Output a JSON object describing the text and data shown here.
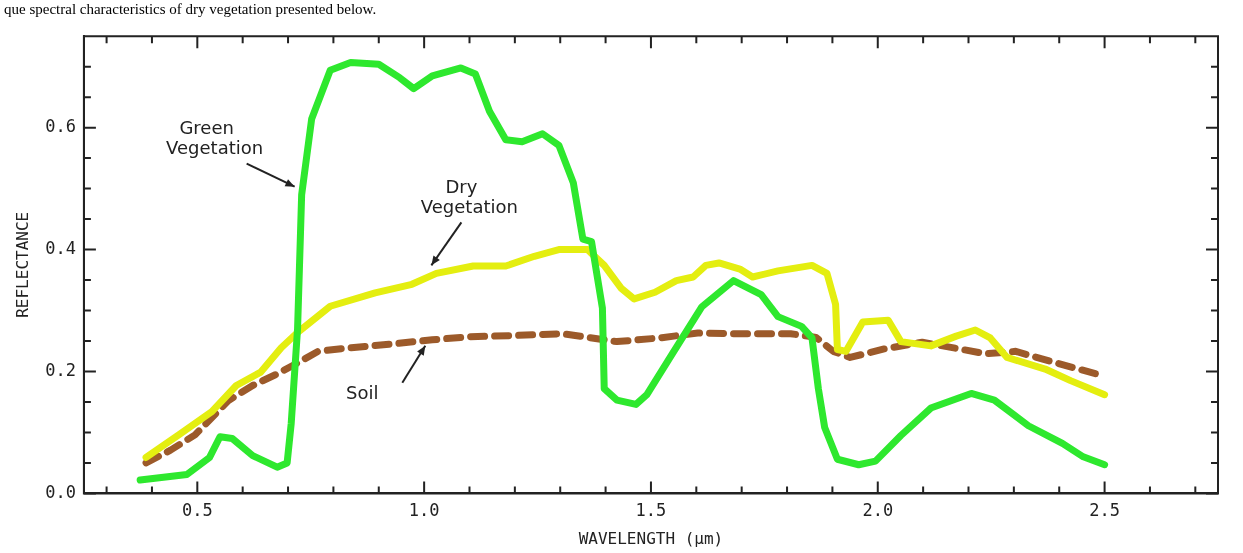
{
  "chart_data": {
    "type": "line",
    "annotations": [
      "que spectral characteristics of dry vegetation presented below."
    ],
    "xlabel": "WAVELENGTH (μm)",
    "ylabel": "REFLECTANCE",
    "xlim": [
      0.25,
      2.75
    ],
    "xticks": [
      {
        "value": 0.3,
        "label": null
      },
      {
        "value": 0.4,
        "label": null
      },
      {
        "value": 0.5,
        "label": "0.5"
      },
      {
        "value": 0.6,
        "label": null
      },
      {
        "value": 0.7,
        "label": null
      },
      {
        "value": 0.8,
        "label": null
      },
      {
        "value": 0.9,
        "label": null
      },
      {
        "value": 1,
        "label": "1.0"
      },
      {
        "value": 1.1,
        "label": null
      },
      {
        "value": 1.2,
        "label": null
      },
      {
        "value": 1.3,
        "label": null
      },
      {
        "value": 1.4,
        "label": null
      },
      {
        "value": 1.5,
        "label": "1.5"
      },
      {
        "value": 1.6,
        "label": null
      },
      {
        "value": 1.7,
        "label": null
      },
      {
        "value": 1.8,
        "label": null
      },
      {
        "value": 1.9,
        "label": null
      },
      {
        "value": 2,
        "label": "2.0"
      },
      {
        "value": 2.1,
        "label": null
      },
      {
        "value": 2.2,
        "label": null
      },
      {
        "value": 2.3,
        "label": null
      },
      {
        "value": 2.4,
        "label": null
      },
      {
        "value": 2.5,
        "label": "2.5"
      },
      {
        "value": 2.6,
        "label": null
      },
      {
        "value": 2.7,
        "label": null
      }
    ],
    "ylim": [
      0,
      0.75
    ],
    "yticks": [
      {
        "value": 0,
        "label": "0.0"
      },
      {
        "value": 0.05,
        "label": null
      },
      {
        "value": 0.1,
        "label": null
      },
      {
        "value": 0.15,
        "label": null
      },
      {
        "value": 0.2,
        "label": "0.2"
      },
      {
        "value": 0.25,
        "label": null
      },
      {
        "value": 0.3,
        "label": null
      },
      {
        "value": 0.35,
        "label": null
      },
      {
        "value": 0.4,
        "label": "0.4"
      },
      {
        "value": 0.45,
        "label": null
      },
      {
        "value": 0.5,
        "label": null
      },
      {
        "value": 0.55,
        "label": null
      },
      {
        "value": 0.6,
        "label": "0.6"
      },
      {
        "value": 0.65,
        "label": null
      },
      {
        "value": 0.7,
        "label": null
      }
    ],
    "grid": false,
    "legend": false,
    "marker": "none",
    "series": [
      {
        "name": "Green Vegetation",
        "color": "#2ee82e",
        "line_style": "solid",
        "x": [
          0.374,
          0.477,
          0.527,
          0.55,
          0.577,
          0.622,
          0.676,
          0.698,
          0.707,
          0.721,
          0.725,
          0.73,
          0.752,
          0.793,
          0.838,
          0.9,
          0.946,
          0.977,
          1.018,
          1.081,
          1.113,
          1.144,
          1.18,
          1.216,
          1.261,
          1.297,
          1.329,
          1.35,
          1.369,
          1.393,
          1.397,
          1.425,
          1.467,
          1.491,
          1.547,
          1.612,
          1.682,
          1.743,
          1.78,
          1.832,
          1.855,
          1.869,
          1.883,
          1.911,
          1.958,
          1.995,
          2.051,
          2.117,
          2.206,
          2.257,
          2.332,
          2.407,
          2.453,
          2.5
        ],
        "values": [
          0.022,
          0.031,
          0.059,
          0.093,
          0.09,
          0.062,
          0.043,
          0.05,
          0.115,
          0.27,
          0.367,
          0.49,
          0.614,
          0.694,
          0.707,
          0.704,
          0.682,
          0.664,
          0.685,
          0.698,
          0.688,
          0.627,
          0.58,
          0.577,
          0.59,
          0.571,
          0.509,
          0.417,
          0.413,
          0.304,
          0.172,
          0.153,
          0.146,
          0.162,
          0.229,
          0.306,
          0.349,
          0.326,
          0.29,
          0.274,
          0.255,
          0.172,
          0.108,
          0.056,
          0.047,
          0.053,
          0.095,
          0.14,
          0.164,
          0.153,
          0.111,
          0.082,
          0.06,
          0.047
        ]
      },
      {
        "name": "Dry Vegetation",
        "color": "#e4ee10",
        "line_style": "solid",
        "x": [
          0.387,
          0.459,
          0.532,
          0.586,
          0.64,
          0.685,
          0.721,
          0.793,
          0.892,
          0.973,
          1.027,
          1.108,
          1.18,
          1.243,
          1.297,
          1.36,
          1.397,
          1.435,
          1.463,
          1.509,
          1.556,
          1.593,
          1.621,
          1.65,
          1.696,
          1.724,
          1.78,
          1.855,
          1.888,
          1.907,
          1.911,
          1.93,
          1.967,
          2.023,
          2.051,
          2.117,
          2.173,
          2.215,
          2.248,
          2.285,
          2.369,
          2.425,
          2.5
        ],
        "values": [
          0.059,
          0.096,
          0.134,
          0.177,
          0.199,
          0.239,
          0.264,
          0.307,
          0.329,
          0.343,
          0.361,
          0.373,
          0.373,
          0.389,
          0.4,
          0.4,
          0.374,
          0.336,
          0.319,
          0.33,
          0.349,
          0.355,
          0.374,
          0.378,
          0.368,
          0.355,
          0.365,
          0.374,
          0.361,
          0.31,
          0.236,
          0.233,
          0.281,
          0.284,
          0.249,
          0.242,
          0.258,
          0.268,
          0.255,
          0.223,
          0.204,
          0.185,
          0.162
        ]
      },
      {
        "name": "Soil",
        "color": "#9c5a2a",
        "line_style": "dashed",
        "x": [
          0.387,
          0.441,
          0.495,
          0.568,
          0.622,
          0.676,
          0.721,
          0.766,
          0.838,
          0.928,
          1.018,
          1.099,
          1.198,
          1.304,
          1.425,
          1.519,
          1.603,
          1.678,
          1.808,
          1.864,
          1.902,
          1.939,
          2.014,
          2.098,
          2.173,
          2.238,
          2.304,
          2.379,
          2.491
        ],
        "values": [
          0.05,
          0.071,
          0.096,
          0.152,
          0.177,
          0.196,
          0.214,
          0.233,
          0.239,
          0.245,
          0.252,
          0.257,
          0.259,
          0.262,
          0.249,
          0.255,
          0.263,
          0.262,
          0.262,
          0.256,
          0.233,
          0.223,
          0.237,
          0.248,
          0.238,
          0.229,
          0.233,
          0.217,
          0.194
        ]
      }
    ]
  }
}
